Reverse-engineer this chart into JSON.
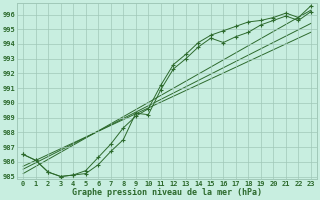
{
  "xlabel": "Graphe pression niveau de la mer (hPa)",
  "bg_color": "#c8eee0",
  "line_color": "#2d6a2d",
  "grid_color": "#a0c8b8",
  "spine_color": "#a0c8b8",
  "ylim": [
    984.8,
    996.8
  ],
  "xlim": [
    -0.5,
    23.5
  ],
  "yticks": [
    985,
    986,
    987,
    988,
    989,
    990,
    991,
    992,
    993,
    994,
    995,
    996
  ],
  "xticks": [
    0,
    1,
    2,
    3,
    4,
    5,
    6,
    7,
    8,
    9,
    10,
    11,
    12,
    13,
    14,
    15,
    16,
    17,
    18,
    19,
    20,
    21,
    22,
    23
  ],
  "xtick_labels": [
    "0",
    "1",
    "2",
    "3",
    "4",
    "5",
    "6",
    "7",
    "8",
    "9",
    "10",
    "11",
    "12",
    "13",
    "14",
    "15",
    "16",
    "17",
    "18",
    "19",
    "20",
    "21",
    "22",
    "23"
  ],
  "line1": [
    986.5,
    986.1,
    985.3,
    985.0,
    985.1,
    985.2,
    985.8,
    986.7,
    987.5,
    989.3,
    989.2,
    990.9,
    992.3,
    993.0,
    993.8,
    994.4,
    994.1,
    994.5,
    994.8,
    995.3,
    995.6,
    995.9,
    995.6,
    996.2
  ],
  "line2": [
    986.5,
    986.1,
    985.3,
    985.0,
    985.1,
    985.4,
    986.3,
    987.2,
    988.3,
    989.1,
    989.6,
    991.2,
    992.6,
    993.3,
    994.1,
    994.6,
    994.9,
    995.2,
    995.5,
    995.6,
    995.8,
    996.1,
    995.8,
    996.6
  ],
  "trend1_x": [
    0,
    23
  ],
  "trend1_y": [
    985.5,
    995.4
  ],
  "trend2_x": [
    0,
    23
  ],
  "trend2_y": [
    985.2,
    996.3
  ],
  "trend3_x": [
    0,
    23
  ],
  "trend3_y": [
    985.7,
    994.8
  ]
}
